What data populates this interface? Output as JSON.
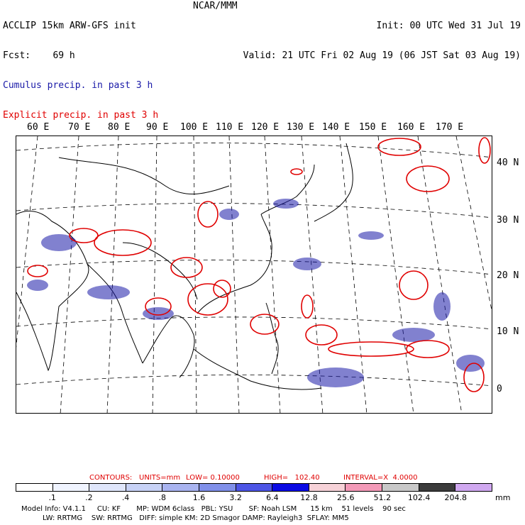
{
  "header": {
    "left_line1": "ACCLIP 15km ARW-GFS init",
    "left_line2": "Fcst:    69 h",
    "center": "NCAR/MMM",
    "init": "Init: 00 UTC Wed 31 Jul 19",
    "valid": "Valid: 21 UTC Fri 02 Aug 19 (06 JST Sat 03 Aug 19)",
    "legend_cumulus": "Cumulus precip. in past 3 h",
    "legend_explicit": "Explicit precip. in past 3 h"
  },
  "colors": {
    "cumulus": "#1a1aa8",
    "explicit": "#e00000",
    "coast": "#000000"
  },
  "longitude_labels": [
    "60 E",
    "70 E",
    "80 E",
    "90 E",
    "100 E",
    "110 E",
    "120 E",
    "130 E",
    "140 E",
    "150 E",
    "160 E",
    "170 E"
  ],
  "latitude_labels": [
    "40 N",
    "30 N",
    "20 N",
    "10 N",
    "0"
  ],
  "contours": {
    "label": "CONTOURS:",
    "units": "UNITS=mm",
    "low": "LOW= 0.10000",
    "high": "HIGH=   102.40",
    "interval": "INTERVAL=X  4.0000"
  },
  "colorbar": {
    "labels": [
      ".1",
      ".2",
      ".4",
      ".8",
      "1.6",
      "3.2",
      "6.4",
      "12.8",
      "25.6",
      "51.2",
      "102.4",
      "204.8"
    ],
    "unit": "mm",
    "colors": [
      "#ffffff",
      "#f0f4ff",
      "#dfe6fb",
      "#c7d2f6",
      "#a9b4f0",
      "#8090ea",
      "#4d55e6",
      "#0a0ae4",
      "#f6d2d8",
      "#f39ab8",
      "#c8c8c8",
      "#3c3c3c",
      "#d0a8f0"
    ]
  },
  "model_info": {
    "line1": "Model Info: V4.1.1     CU: KF       MP: WDM 6class   PBL: YSU       SF: Noah LSM      15 km    51 levels    90 sec",
    "line2": "LW: RRTMG    SW: RRTMG   DIFF: simple KM: 2D Smagor DAMP: Rayleigh3  SFLAY: MM5"
  }
}
